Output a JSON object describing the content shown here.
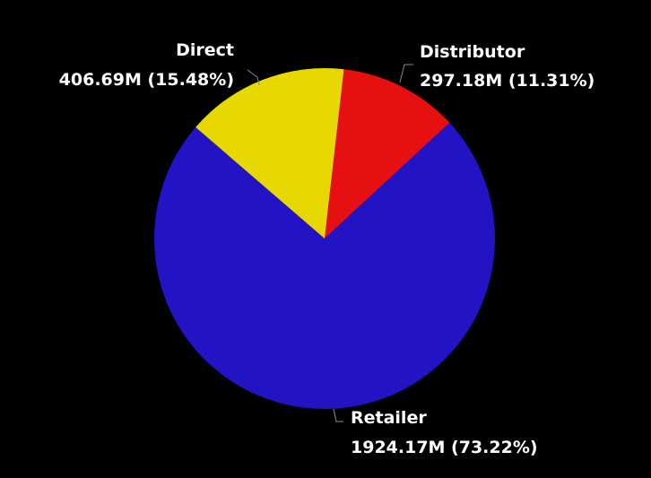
{
  "chart_data": {
    "type": "pie",
    "title": "",
    "slices": [
      {
        "name": "Direct",
        "value": 406.69,
        "value_label": "406.69M (15.48%)",
        "percent": 15.48,
        "color": "#E6D800"
      },
      {
        "name": "Distributor",
        "value": 297.18,
        "value_label": "297.18M (11.31%)",
        "percent": 11.31,
        "color": "#E61010"
      },
      {
        "name": "Retailer",
        "value": 1924.17,
        "value_label": "1924.17M (73.22%)",
        "percent": 73.22,
        "color": "#2213C4"
      }
    ],
    "legend": "none"
  },
  "colors": {
    "background": "#000000",
    "label_text": "#FFFFFF",
    "leader_line": "#8A8A8A"
  }
}
